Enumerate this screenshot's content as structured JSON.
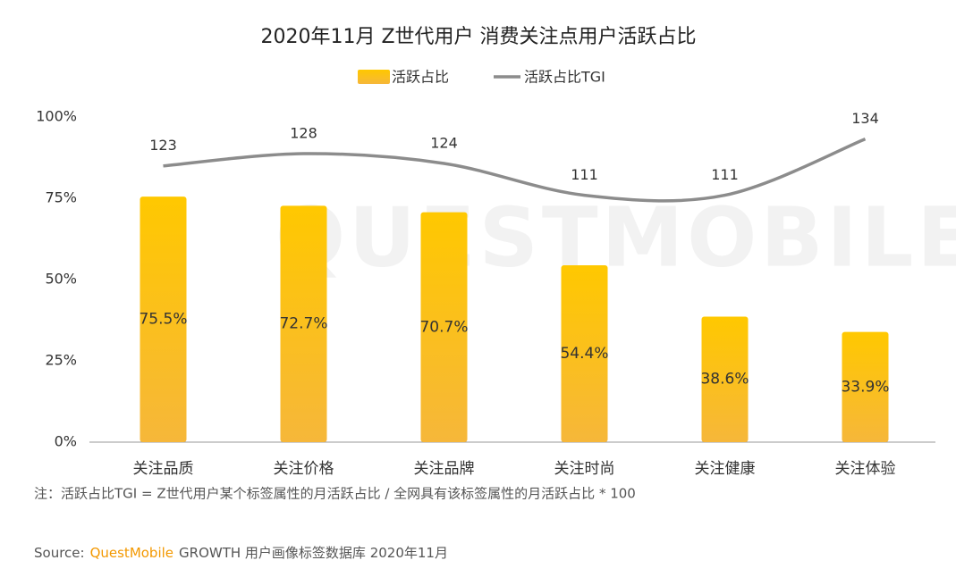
{
  "chart_data": {
    "type": "bar",
    "title": "2020年11月 Z世代用户 消费关注点用户活跃占比",
    "categories": [
      "关注品质",
      "关注价格",
      "关注品牌",
      "关注时尚",
      "关注健康",
      "关注体验"
    ],
    "series": [
      {
        "name": "活跃占比",
        "type": "bar",
        "color": "#FFC300",
        "values": [
          75.5,
          72.7,
          70.7,
          54.4,
          38.6,
          33.9
        ],
        "value_labels": [
          "75.5%",
          "72.7%",
          "70.7%",
          "54.4%",
          "38.6%",
          "33.9%"
        ]
      },
      {
        "name": "活跃占比TGI",
        "type": "line",
        "axis": "y2",
        "color": "#8c8c8c",
        "values": [
          123,
          128,
          124,
          111,
          111,
          134
        ]
      }
    ],
    "ylim": [
      0,
      100
    ],
    "yticks": [
      {
        "value": 0,
        "label": "0%"
      },
      {
        "value": 25,
        "label": "25%"
      },
      {
        "value": 50,
        "label": "50%"
      },
      {
        "value": 75,
        "label": "75%"
      },
      {
        "value": 100,
        "label": "100%"
      }
    ],
    "y2lim": [
      10,
      143
    ],
    "legend": "top",
    "grid": false,
    "watermark": "QUESTMOBILE"
  },
  "note": "注：活跃占比TGI = Z世代用户某个标签属性的月活跃占比 / 全网具有该标签属性的月活跃占比 * 100",
  "source": {
    "prefix": "Source:",
    "brand": "QuestMobile",
    "text": "GROWTH 用户画像标签数据库 2020年11月"
  }
}
